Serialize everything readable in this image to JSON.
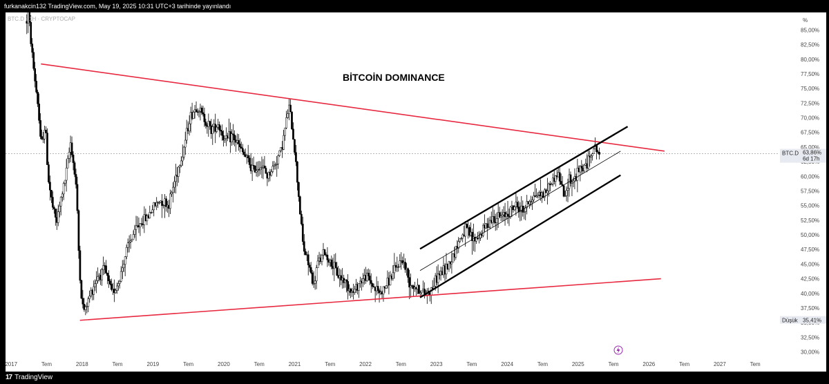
{
  "header": {
    "published_text": "furkanakcin132 TradingView.com, May 19, 2025 10:31 UTC+3 tarihinde yayınlandı"
  },
  "footer": {
    "brand": "TradingView"
  },
  "chart_data": {
    "type": "candlestick",
    "symbol_label": "BTC.D · 1H · CRYPTOCAP",
    "title": "BİTCOİN DOMINANCE",
    "percent_label": "%",
    "y_ticks": [
      "85,00%",
      "82,50%",
      "80,00%",
      "77,50%",
      "75,00%",
      "72,50%",
      "70,00%",
      "67,50%",
      "65,00%",
      "62,50%",
      "60,00%",
      "57,50%",
      "55,00%",
      "52,50%",
      "50,00%",
      "47,50%",
      "45,00%",
      "42,50%",
      "40,00%",
      "37,50%",
      "35,00%",
      "32,50%",
      "30,00%"
    ],
    "ylim": [
      29,
      88
    ],
    "x_ticks": [
      "2017",
      "Tem",
      "2018",
      "Tem",
      "2019",
      "Tem",
      "2020",
      "Tem",
      "2021",
      "Tem",
      "2022",
      "Tem",
      "2023",
      "Tem",
      "2024",
      "Tem",
      "2025",
      "Tem",
      "2026",
      "Tem",
      "2027",
      "Tem"
    ],
    "xlim": [
      2017.0,
      2027.9
    ],
    "price_line": {
      "label": "BTC.D",
      "value_label": "63,86%",
      "countdown": "6d 17h",
      "value": 63.86
    },
    "low_marker": {
      "label": "Düşük",
      "value_label": "35,41%",
      "value": 35.41
    },
    "series": [
      {
        "x": [
          2017.3,
          2017.32,
          2017.4,
          2017.46,
          2017.5,
          2017.56,
          2017.6,
          2017.66,
          2017.72,
          2017.78,
          2017.85,
          2017.92,
          2018.0,
          2018.04,
          2018.08,
          2018.12,
          2018.2,
          2018.3,
          2018.4,
          2018.5,
          2018.6,
          2018.7,
          2018.8,
          2018.9,
          2019.0,
          2019.1,
          2019.2,
          2019.3,
          2019.4,
          2019.5,
          2019.6,
          2019.7,
          2019.8,
          2019.9,
          2020.0,
          2020.1,
          2020.2,
          2020.3,
          2020.4,
          2020.5,
          2020.6,
          2020.7,
          2020.8,
          2020.9,
          2021.0,
          2021.05,
          2021.1,
          2021.2,
          2021.3,
          2021.35,
          2021.4,
          2021.5,
          2021.6,
          2021.7,
          2021.8,
          2021.9,
          2022.0,
          2022.1,
          2022.2,
          2022.3,
          2022.4,
          2022.5,
          2022.6,
          2022.7,
          2022.8,
          2022.9,
          2023.0,
          2023.1,
          2023.2,
          2023.3,
          2023.4,
          2023.5,
          2023.6,
          2023.7,
          2023.8,
          2023.9,
          2024.0,
          2024.1,
          2024.2,
          2024.3,
          2024.4,
          2024.5,
          2024.6,
          2024.7,
          2024.8,
          2024.9,
          2024.95,
          2025.0,
          2025.1,
          2025.2,
          2025.3,
          2025.38
        ],
        "y": [
          86.5,
          88.0,
          78.0,
          72.0,
          65.0,
          69.0,
          60.0,
          55.0,
          52.0,
          56.0,
          60.0,
          66.0,
          58.0,
          45.0,
          38.0,
          37.0,
          40.0,
          43.0,
          44.0,
          40.0,
          42.0,
          47.0,
          50.0,
          52.0,
          53.0,
          55.0,
          56.0,
          55.0,
          60.0,
          64.0,
          70.0,
          72.0,
          70.0,
          68.0,
          69.0,
          66.0,
          67.0,
          65.0,
          63.0,
          61.0,
          62.0,
          60.0,
          62.0,
          65.0,
          72.0,
          68.0,
          62.0,
          48.0,
          44.0,
          41.0,
          45.0,
          47.0,
          45.0,
          43.0,
          42.0,
          40.0,
          42.0,
          43.0,
          41.0,
          40.0,
          42.0,
          44.0,
          46.0,
          42.0,
          41.0,
          40.0,
          40.5,
          43.0,
          44.0,
          46.0,
          49.0,
          51.0,
          49.0,
          50.0,
          52.0,
          53.0,
          53.0,
          54.0,
          55.0,
          54.0,
          56.0,
          57.0,
          57.0,
          59.0,
          60.5,
          56.0,
          60.0,
          59.0,
          61.0,
          62.0,
          65.0,
          63.86
        ]
      }
    ],
    "lines": [
      {
        "color": "#e8283f",
        "width": 1.6,
        "x1": 2017.5,
        "y1": 79.2,
        "x2": 2026.3,
        "y2": 64.3
      },
      {
        "color": "#e8283f",
        "width": 1.6,
        "x1": 2018.05,
        "y1": 35.4,
        "x2": 2026.25,
        "y2": 42.5
      },
      {
        "color": "#000000",
        "width": 2.4,
        "x1": 2022.85,
        "y1": 47.6,
        "x2": 2025.78,
        "y2": 68.5
      },
      {
        "color": "#000000",
        "width": 2.4,
        "x1": 2022.85,
        "y1": 39.3,
        "x2": 2025.68,
        "y2": 60.2
      },
      {
        "color": "#000000",
        "width": 0.8,
        "x1": 2022.85,
        "y1": 43.9,
        "x2": 2025.68,
        "y2": 64.3
      }
    ],
    "colors": {
      "up": "#ffffff",
      "down": "#000000",
      "outline": "#000000",
      "price_box": "#e8eaf1",
      "icon": "#9c27b0"
    }
  }
}
